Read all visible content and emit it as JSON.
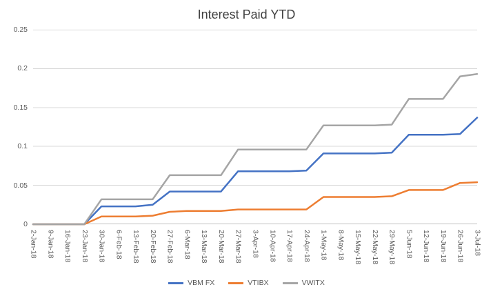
{
  "chart_data": {
    "type": "line",
    "title": "Interest Paid YTD",
    "x": [
      "2-Jan-18",
      "9-Jan-18",
      "16-Jan-18",
      "23-Jan-18",
      "30-Jan-18",
      "6-Feb-18",
      "13-Feb-18",
      "20-Feb-18",
      "27-Feb-18",
      "6-Mar-18",
      "13-Mar-18",
      "20-Mar-18",
      "27-Mar-18",
      "3-Apr-18",
      "10-Apr-18",
      "17-Apr-18",
      "24-Apr-18",
      "1-May-18",
      "8-May-18",
      "15-May-18",
      "22-May-18",
      "29-May-18",
      "5-Jun-18",
      "12-Jun-18",
      "19-Jun-18",
      "26-Jun-18",
      "3-Jul-18"
    ],
    "series": [
      {
        "name": "VBM FX",
        "color": "#4472C4",
        "values": [
          0,
          0,
          0,
          0,
          0.023,
          0.023,
          0.023,
          0.025,
          0.042,
          0.042,
          0.042,
          0.042,
          0.068,
          0.068,
          0.068,
          0.068,
          0.069,
          0.091,
          0.091,
          0.091,
          0.091,
          0.092,
          0.115,
          0.115,
          0.115,
          0.116,
          0.137
        ]
      },
      {
        "name": "VTIBX",
        "color": "#ED7D31",
        "values": [
          0,
          0,
          0,
          0,
          0.01,
          0.01,
          0.01,
          0.011,
          0.016,
          0.017,
          0.017,
          0.017,
          0.019,
          0.019,
          0.019,
          0.019,
          0.019,
          0.035,
          0.035,
          0.035,
          0.035,
          0.036,
          0.044,
          0.044,
          0.044,
          0.053,
          0.054
        ]
      },
      {
        "name": "VWITX",
        "color": "#A5A5A5",
        "values": [
          0,
          0,
          0,
          0,
          0.032,
          0.032,
          0.032,
          0.032,
          0.063,
          0.063,
          0.063,
          0.063,
          0.096,
          0.096,
          0.096,
          0.096,
          0.096,
          0.127,
          0.127,
          0.127,
          0.127,
          0.128,
          0.161,
          0.161,
          0.161,
          0.19,
          0.193
        ]
      }
    ],
    "y_axis": {
      "min": 0,
      "max": 0.25,
      "tick_values": [
        0,
        0.05,
        0.1,
        0.15,
        0.2,
        0.25
      ],
      "tick_labels": [
        "0",
        "0.05",
        "0.1",
        "0.15",
        "0.2",
        "0.25"
      ]
    },
    "grid": "horizontal",
    "legend_position": "bottom"
  },
  "colors": {
    "grid": "#D9D9D9",
    "axis_line": "#BFBFBF",
    "tick_text": "#595959",
    "title_text": "#404040",
    "background": "#FFFFFF"
  }
}
